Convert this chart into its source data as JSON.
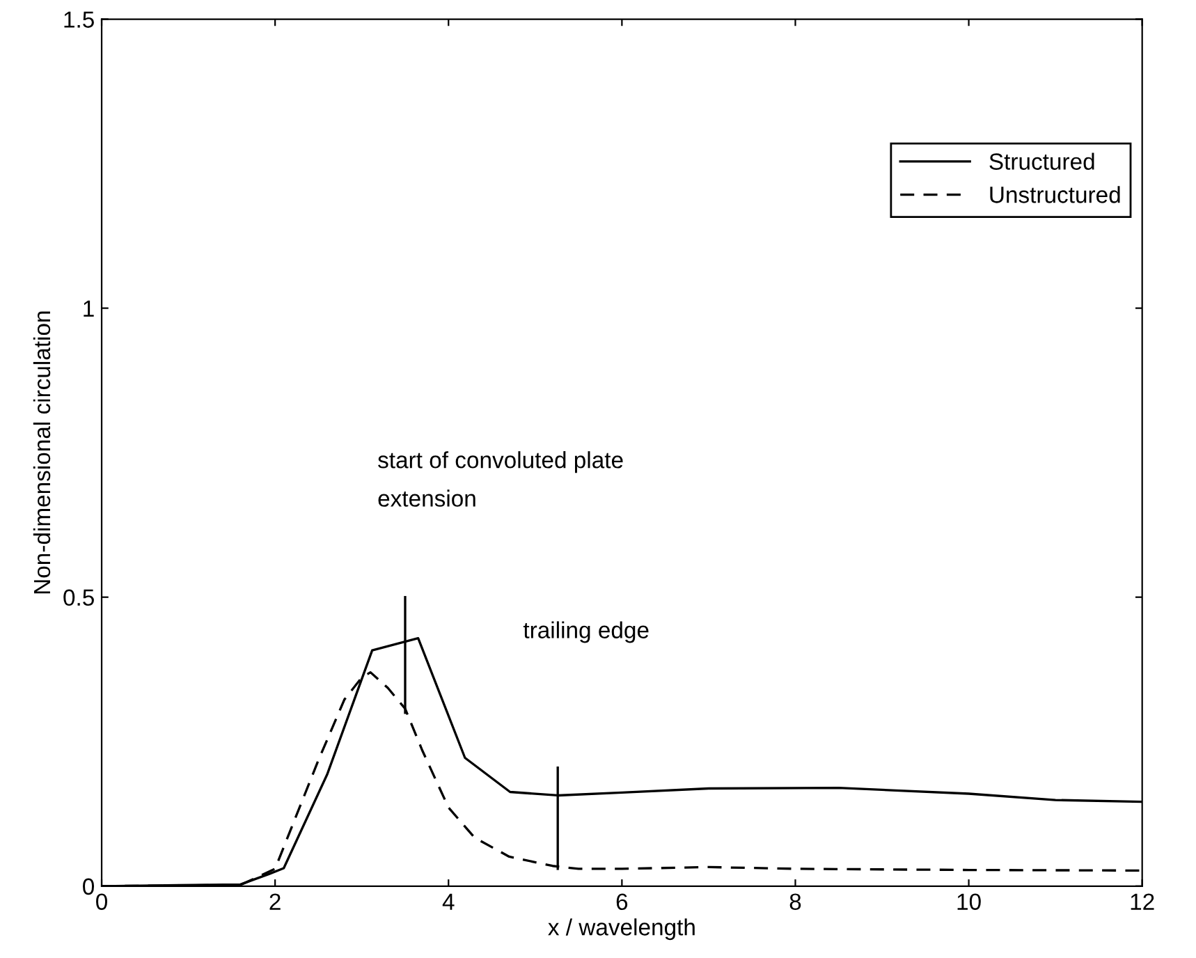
{
  "chart_data": {
    "type": "line",
    "xlabel": "x / wavelength",
    "ylabel": "Non-dimensional circulation",
    "xlim": [
      0,
      12
    ],
    "ylim": [
      0,
      1.5
    ],
    "xticks": [
      0,
      2,
      4,
      6,
      8,
      10,
      12
    ],
    "yticks": [
      0,
      0.5,
      1,
      1.5
    ],
    "grid": false,
    "legend": "top right",
    "marker": "none",
    "series": [
      {
        "name": "Structured",
        "color": "#000000",
        "line_style": "solid",
        "x": [
          0,
          1.6,
          1.93,
          2.1,
          2.6,
          3.12,
          3.65,
          4.19,
          4.71,
          5.26,
          6.0,
          7.0,
          8.5,
          10.0,
          11.0,
          12.0
        ],
        "values": [
          0,
          0.003,
          0.021,
          0.031,
          0.193,
          0.408,
          0.429,
          0.222,
          0.163,
          0.157,
          0.162,
          0.169,
          0.17,
          0.16,
          0.149,
          0.146
        ]
      },
      {
        "name": "Unstructured",
        "color": "#000000",
        "line_style": "dashed",
        "x": [
          0,
          1.6,
          2.0,
          2.5,
          2.8,
          3.0,
          3.1,
          3.3,
          3.5,
          3.7,
          4.0,
          4.3,
          4.7,
          5.2,
          5.5,
          6.0,
          7.0,
          8.0,
          10.0,
          12.0
        ],
        "values": [
          0,
          0.002,
          0.03,
          0.218,
          0.323,
          0.361,
          0.37,
          0.343,
          0.307,
          0.234,
          0.136,
          0.084,
          0.051,
          0.035,
          0.03,
          0.03,
          0.033,
          0.03,
          0.028,
          0.027
        ]
      },
      {
        "color": "#000000",
        "line_style": "solid",
        "x": [
          3.5,
          3.5
        ],
        "values": [
          0.3,
          0.5
        ]
      },
      {
        "color": "#000000",
        "line_style": "solid",
        "x": [
          5.26,
          5.26
        ],
        "values": [
          0.03,
          0.205
        ]
      }
    ],
    "annotations": [
      "start of convoluted plate\nextension",
      "trailing edge"
    ]
  }
}
